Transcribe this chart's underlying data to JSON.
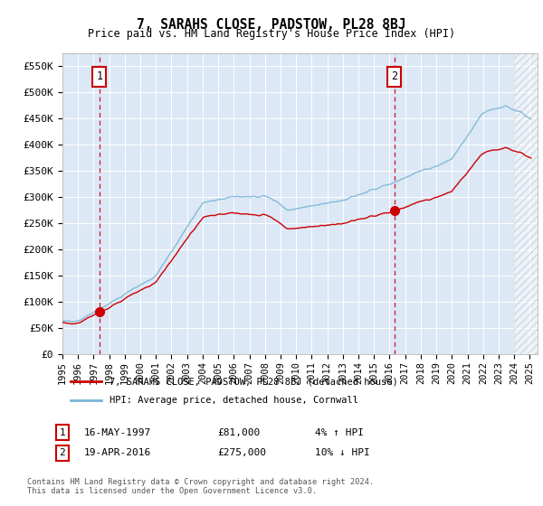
{
  "title": "7, SARAHS CLOSE, PADSTOW, PL28 8BJ",
  "subtitle": "Price paid vs. HM Land Registry's House Price Index (HPI)",
  "legend_line1": "7, SARAHS CLOSE, PADSTOW, PL28 8BJ (detached house)",
  "legend_line2": "HPI: Average price, detached house, Cornwall",
  "annotation1_label": "1",
  "annotation1_date": "16-MAY-1997",
  "annotation1_price": "£81,000",
  "annotation1_hpi": "4% ↑ HPI",
  "annotation2_label": "2",
  "annotation2_date": "19-APR-2016",
  "annotation2_price": "£275,000",
  "annotation2_hpi": "10% ↓ HPI",
  "footnote": "Contains HM Land Registry data © Crown copyright and database right 2024.\nThis data is licensed under the Open Government Licence v3.0.",
  "sale1_year": 1997.37,
  "sale1_price": 81000,
  "sale2_year": 2016.3,
  "sale2_price": 275000,
  "hpi_color": "#7ab5d8",
  "sale_color": "#cc0000",
  "dashed_color": "#cc0000",
  "background_color": "#dce8f5",
  "plot_bg": "#dce8f5",
  "ylim": [
    0,
    575000
  ],
  "xlim_start": 1995,
  "xlim_end": 2025.5,
  "yticks": [
    0,
    50000,
    100000,
    150000,
    200000,
    250000,
    300000,
    350000,
    400000,
    450000,
    500000,
    550000
  ],
  "xtick_years": [
    1995,
    1996,
    1997,
    1998,
    1999,
    2000,
    2001,
    2002,
    2003,
    2004,
    2005,
    2006,
    2007,
    2008,
    2009,
    2010,
    2011,
    2012,
    2013,
    2014,
    2015,
    2016,
    2017,
    2018,
    2019,
    2020,
    2021,
    2022,
    2023,
    2024,
    2025
  ]
}
